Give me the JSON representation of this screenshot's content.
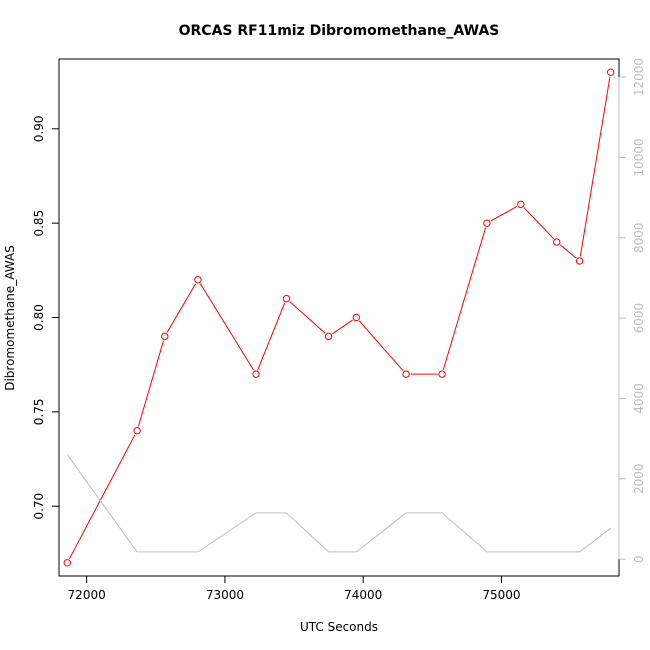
{
  "chart_data": {
    "type": "line",
    "title": "ORCAS RF11miz Dibromomethane_AWAS",
    "xlabel": "UTC Seconds",
    "ylabel": "Dibromomethane_AWAS",
    "xlim": [
      71800,
      75850
    ],
    "ylim": [
      0.663,
      0.937
    ],
    "y2lim": [
      -420,
      12450
    ],
    "x_ticks": [
      72000,
      73000,
      74000,
      75000
    ],
    "x_tick_labels": [
      "72000",
      "73000",
      "74000",
      "75000"
    ],
    "y_ticks": [
      0.7,
      0.75,
      0.8,
      0.85,
      0.9
    ],
    "y_tick_labels": [
      "0.70",
      "0.75",
      "0.80",
      "0.85",
      "0.90"
    ],
    "y2_ticks": [
      0,
      2000,
      4000,
      6000,
      8000,
      10000,
      12000
    ],
    "y2_tick_labels": [
      "0",
      "2000",
      "4000",
      "6000",
      "8000",
      "10000",
      "12000"
    ],
    "series": [
      {
        "color": "#ff0000",
        "axis": "left",
        "marker": "open-circle",
        "x": [
          71860,
          72365,
          72565,
          72805,
          73225,
          73445,
          73750,
          73950,
          74310,
          74570,
          74895,
          75140,
          75400,
          75565,
          75790
        ],
        "y": [
          0.67,
          0.74,
          0.79,
          0.82,
          0.77,
          0.81,
          0.79,
          0.8,
          0.77,
          0.77,
          0.85,
          0.86,
          0.84,
          0.83,
          0.93
        ]
      },
      {
        "color": "#bebebe",
        "axis": "right",
        "marker": "none",
        "x": [
          71860,
          72365,
          72565,
          72805,
          73225,
          73445,
          73750,
          73950,
          74310,
          74570,
          74895,
          75140,
          75400,
          75565,
          75790
        ],
        "y": [
          2600,
          180,
          180,
          180,
          1150,
          1150,
          180,
          180,
          1150,
          1150,
          180,
          180,
          180,
          180,
          770
        ]
      }
    ]
  }
}
